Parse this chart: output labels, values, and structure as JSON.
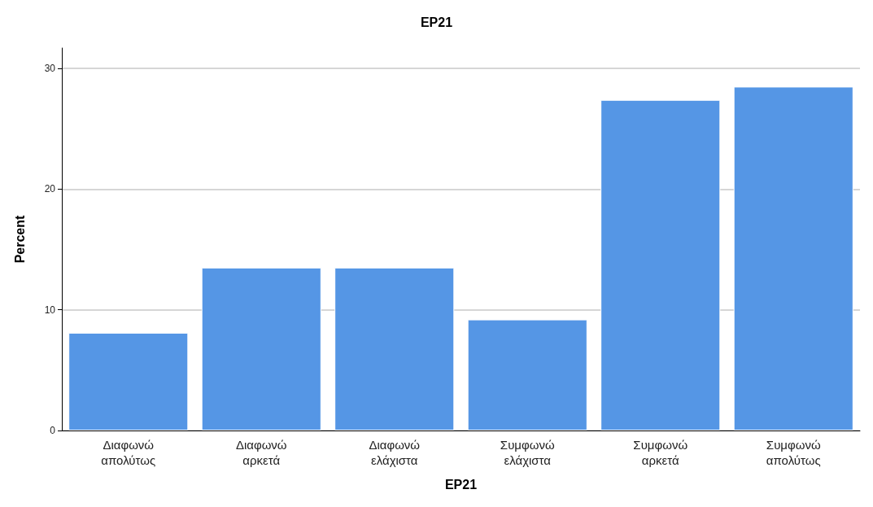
{
  "chart_data": {
    "type": "bar",
    "title": "EP21",
    "xlabel": "EP21",
    "ylabel": "Percent",
    "categories": [
      "Διαφωνώ\nαπολύτως",
      "Διαφωνώ\nαρκετά",
      "Διαφωνώ\nελάχιστα",
      "Συμφωνώ\nελάχιστα",
      "Συμφωνώ\nαρκετά",
      "Συμφωνώ\nαπολύτως"
    ],
    "values": [
      8.1,
      13.5,
      13.5,
      9.2,
      27.4,
      28.5
    ],
    "color": "#5596e5",
    "ylim": [
      0,
      31.7
    ],
    "yticks": [
      0,
      10,
      20,
      30
    ],
    "grid": "y"
  }
}
